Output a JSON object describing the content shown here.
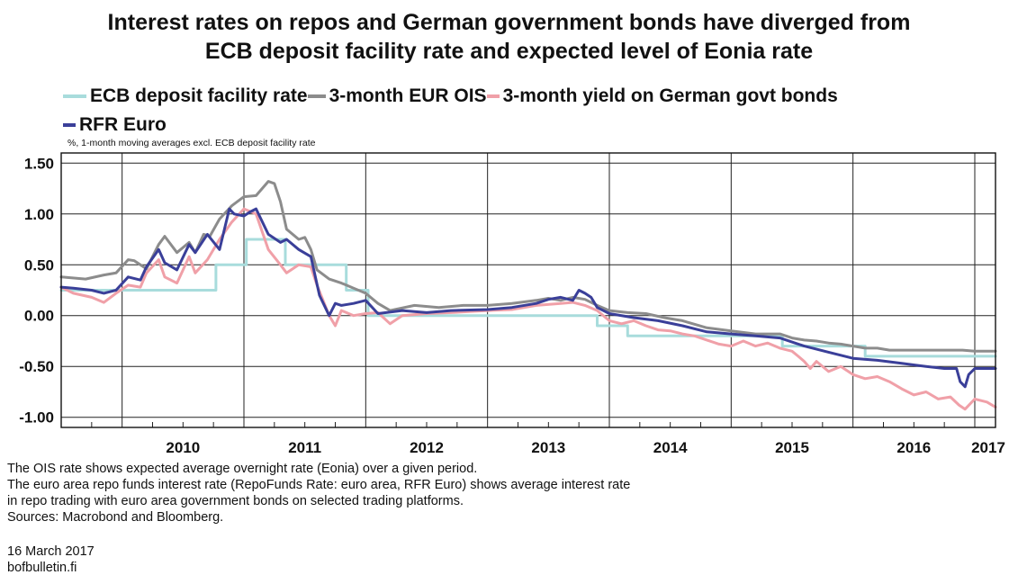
{
  "chart_data": {
    "type": "line",
    "title_line1": "Interest rates on repos and German government bonds have diverged from",
    "title_line2": "ECB deposit facility rate and expected level of Eonia rate",
    "unit_note": "%, 1-month moving averages excl. ECB deposit facility rate",
    "xlim": [
      2009.5,
      2017.17
    ],
    "ylim": [
      -1.1,
      1.6
    ],
    "y_ticks": [
      1.5,
      1.0,
      0.5,
      0.0,
      -0.5,
      -1.0
    ],
    "y_tick_labels": [
      "1.50",
      "1.00",
      "0.50",
      "0.00",
      "-0.50",
      "-1.00"
    ],
    "x_tick_labels": [
      "2010",
      "2011",
      "2012",
      "2013",
      "2014",
      "2015",
      "2016",
      "2017"
    ],
    "grid": true,
    "legend_position": "top",
    "series": [
      {
        "name": "ECB deposit facility rate",
        "color": "#a8dcdc",
        "step": true,
        "x": [
          2009.5,
          2010.77,
          2010.77,
          2011.02,
          2011.02,
          2011.34,
          2011.34,
          2011.84,
          2011.84,
          2012.02,
          2012.02,
          2013.9,
          2013.9,
          2014.15,
          2014.15,
          2015.42,
          2015.42,
          2016.04,
          2016.04,
          2016.1,
          2016.1,
          2016.17,
          2016.17,
          2017.17
        ],
        "y": [
          0.25,
          0.25,
          0.5,
          0.5,
          0.75,
          0.75,
          0.5,
          0.5,
          0.25,
          0.25,
          0.0,
          0.0,
          -0.1,
          -0.1,
          -0.2,
          -0.2,
          -0.3,
          -0.3,
          -0.3,
          -0.3,
          -0.4,
          -0.4,
          -0.4,
          -0.4
        ]
      },
      {
        "name": "3-month EUR OIS",
        "color": "#8c8c8c",
        "x": [
          2009.5,
          2009.7,
          2009.85,
          2009.95,
          2010.05,
          2010.1,
          2010.2,
          2010.3,
          2010.35,
          2010.45,
          2010.55,
          2010.6,
          2010.67,
          2010.72,
          2010.8,
          2010.9,
          2011.0,
          2011.1,
          2011.15,
          2011.2,
          2011.25,
          2011.3,
          2011.35,
          2011.45,
          2011.5,
          2011.55,
          2011.6,
          2011.7,
          2011.8,
          2011.9,
          2012.0,
          2012.1,
          2012.2,
          2012.4,
          2012.6,
          2012.8,
          2013.0,
          2013.2,
          2013.4,
          2013.5,
          2013.6,
          2013.7,
          2013.8,
          2013.9,
          2014.0,
          2014.15,
          2014.3,
          2014.45,
          2014.6,
          2014.8,
          2015.0,
          2015.2,
          2015.4,
          2015.5,
          2015.6,
          2015.7,
          2015.8,
          2015.9,
          2016.0,
          2016.1,
          2016.2,
          2016.3,
          2016.5,
          2016.7,
          2016.9,
          2017.0,
          2017.17
        ],
        "y": [
          0.38,
          0.36,
          0.4,
          0.42,
          0.55,
          0.54,
          0.46,
          0.7,
          0.78,
          0.62,
          0.72,
          0.62,
          0.8,
          0.78,
          0.95,
          1.08,
          1.17,
          1.18,
          1.25,
          1.32,
          1.3,
          1.12,
          0.85,
          0.75,
          0.77,
          0.65,
          0.45,
          0.36,
          0.32,
          0.27,
          0.22,
          0.12,
          0.05,
          0.1,
          0.08,
          0.1,
          0.1,
          0.12,
          0.15,
          0.17,
          0.15,
          0.18,
          0.16,
          0.1,
          0.05,
          0.03,
          0.02,
          -0.02,
          -0.05,
          -0.12,
          -0.15,
          -0.18,
          -0.18,
          -0.22,
          -0.24,
          -0.25,
          -0.27,
          -0.28,
          -0.3,
          -0.32,
          -0.32,
          -0.34,
          -0.34,
          -0.34,
          -0.34,
          -0.35,
          -0.35
        ]
      },
      {
        "name": "3-month yield on German govt bonds",
        "color": "#f0a0a8",
        "x": [
          2009.5,
          2009.6,
          2009.75,
          2009.85,
          2009.95,
          2010.05,
          2010.15,
          2010.2,
          2010.3,
          2010.35,
          2010.45,
          2010.55,
          2010.6,
          2010.7,
          2010.8,
          2010.9,
          2011.0,
          2011.1,
          2011.2,
          2011.3,
          2011.35,
          2011.45,
          2011.55,
          2011.6,
          2011.7,
          2011.75,
          2011.8,
          2011.9,
          2012.0,
          2012.1,
          2012.2,
          2012.3,
          2012.5,
          2012.7,
          2013.0,
          2013.2,
          2013.4,
          2013.6,
          2013.7,
          2013.8,
          2013.9,
          2014.0,
          2014.1,
          2014.2,
          2014.3,
          2014.4,
          2014.5,
          2014.6,
          2014.7,
          2014.8,
          2014.9,
          2015.0,
          2015.1,
          2015.2,
          2015.3,
          2015.4,
          2015.5,
          2015.55,
          2015.6,
          2015.65,
          2015.7,
          2015.8,
          2015.9,
          2016.0,
          2016.1,
          2016.2,
          2016.3,
          2016.4,
          2016.5,
          2016.6,
          2016.7,
          2016.8,
          2016.87,
          2016.92,
          2017.0,
          2017.1,
          2017.17
        ],
        "y": [
          0.28,
          0.22,
          0.18,
          0.13,
          0.22,
          0.3,
          0.28,
          0.42,
          0.55,
          0.38,
          0.32,
          0.58,
          0.42,
          0.55,
          0.75,
          0.92,
          1.05,
          1.0,
          0.65,
          0.5,
          0.42,
          0.5,
          0.48,
          0.3,
          0.0,
          -0.1,
          0.05,
          0.0,
          0.02,
          0.03,
          -0.08,
          0.0,
          0.02,
          0.03,
          0.05,
          0.06,
          0.1,
          0.12,
          0.13,
          0.1,
          0.05,
          -0.05,
          -0.08,
          -0.05,
          -0.1,
          -0.14,
          -0.15,
          -0.18,
          -0.2,
          -0.24,
          -0.28,
          -0.3,
          -0.25,
          -0.3,
          -0.27,
          -0.32,
          -0.35,
          -0.4,
          -0.45,
          -0.52,
          -0.45,
          -0.55,
          -0.5,
          -0.58,
          -0.62,
          -0.6,
          -0.65,
          -0.72,
          -0.78,
          -0.75,
          -0.82,
          -0.8,
          -0.88,
          -0.92,
          -0.82,
          -0.85,
          -0.9
        ]
      },
      {
        "name": "RFR Euro",
        "color": "#3a3f99",
        "x": [
          2009.5,
          2009.6,
          2009.75,
          2009.85,
          2009.95,
          2010.05,
          2010.15,
          2010.2,
          2010.3,
          2010.35,
          2010.45,
          2010.55,
          2010.6,
          2010.7,
          2010.8,
          2010.88,
          2010.92,
          2011.0,
          2011.05,
          2011.1,
          2011.2,
          2011.3,
          2011.35,
          2011.45,
          2011.55,
          2011.62,
          2011.7,
          2011.75,
          2011.8,
          2011.9,
          2012.0,
          2012.1,
          2012.3,
          2012.5,
          2012.7,
          2013.0,
          2013.2,
          2013.4,
          2013.5,
          2013.6,
          2013.7,
          2013.75,
          2013.8,
          2013.85,
          2013.9,
          2014.0,
          2014.2,
          2014.4,
          2014.6,
          2014.8,
          2015.0,
          2015.2,
          2015.4,
          2015.6,
          2015.8,
          2016.0,
          2016.2,
          2016.4,
          2016.6,
          2016.75,
          2016.85,
          2016.88,
          2016.92,
          2016.95,
          2017.0,
          2017.17
        ],
        "y": [
          0.28,
          0.27,
          0.25,
          0.22,
          0.25,
          0.38,
          0.35,
          0.48,
          0.65,
          0.52,
          0.45,
          0.7,
          0.62,
          0.8,
          0.65,
          1.05,
          1.0,
          0.98,
          1.02,
          1.05,
          0.8,
          0.72,
          0.75,
          0.65,
          0.58,
          0.2,
          0.0,
          0.12,
          0.1,
          0.12,
          0.15,
          0.02,
          0.05,
          0.03,
          0.05,
          0.06,
          0.08,
          0.12,
          0.16,
          0.18,
          0.15,
          0.25,
          0.22,
          0.18,
          0.08,
          0.02,
          -0.02,
          -0.05,
          -0.1,
          -0.16,
          -0.18,
          -0.2,
          -0.22,
          -0.3,
          -0.36,
          -0.42,
          -0.44,
          -0.47,
          -0.5,
          -0.52,
          -0.52,
          -0.65,
          -0.7,
          -0.58,
          -0.52,
          -0.52
        ]
      }
    ]
  },
  "footer": {
    "note1": "The OIS rate shows expected average overnight rate (Eonia) over a given period.",
    "note2": "The euro area repo funds interest rate (RepoFunds Rate: euro area, RFR Euro) shows average interest rate",
    "note3": "in repo trading with euro area government bonds on selected trading platforms.",
    "sources": "Sources: Macrobond and Bloomberg.",
    "date": "16 March 2017",
    "site": "bofbulletin.fi"
  }
}
